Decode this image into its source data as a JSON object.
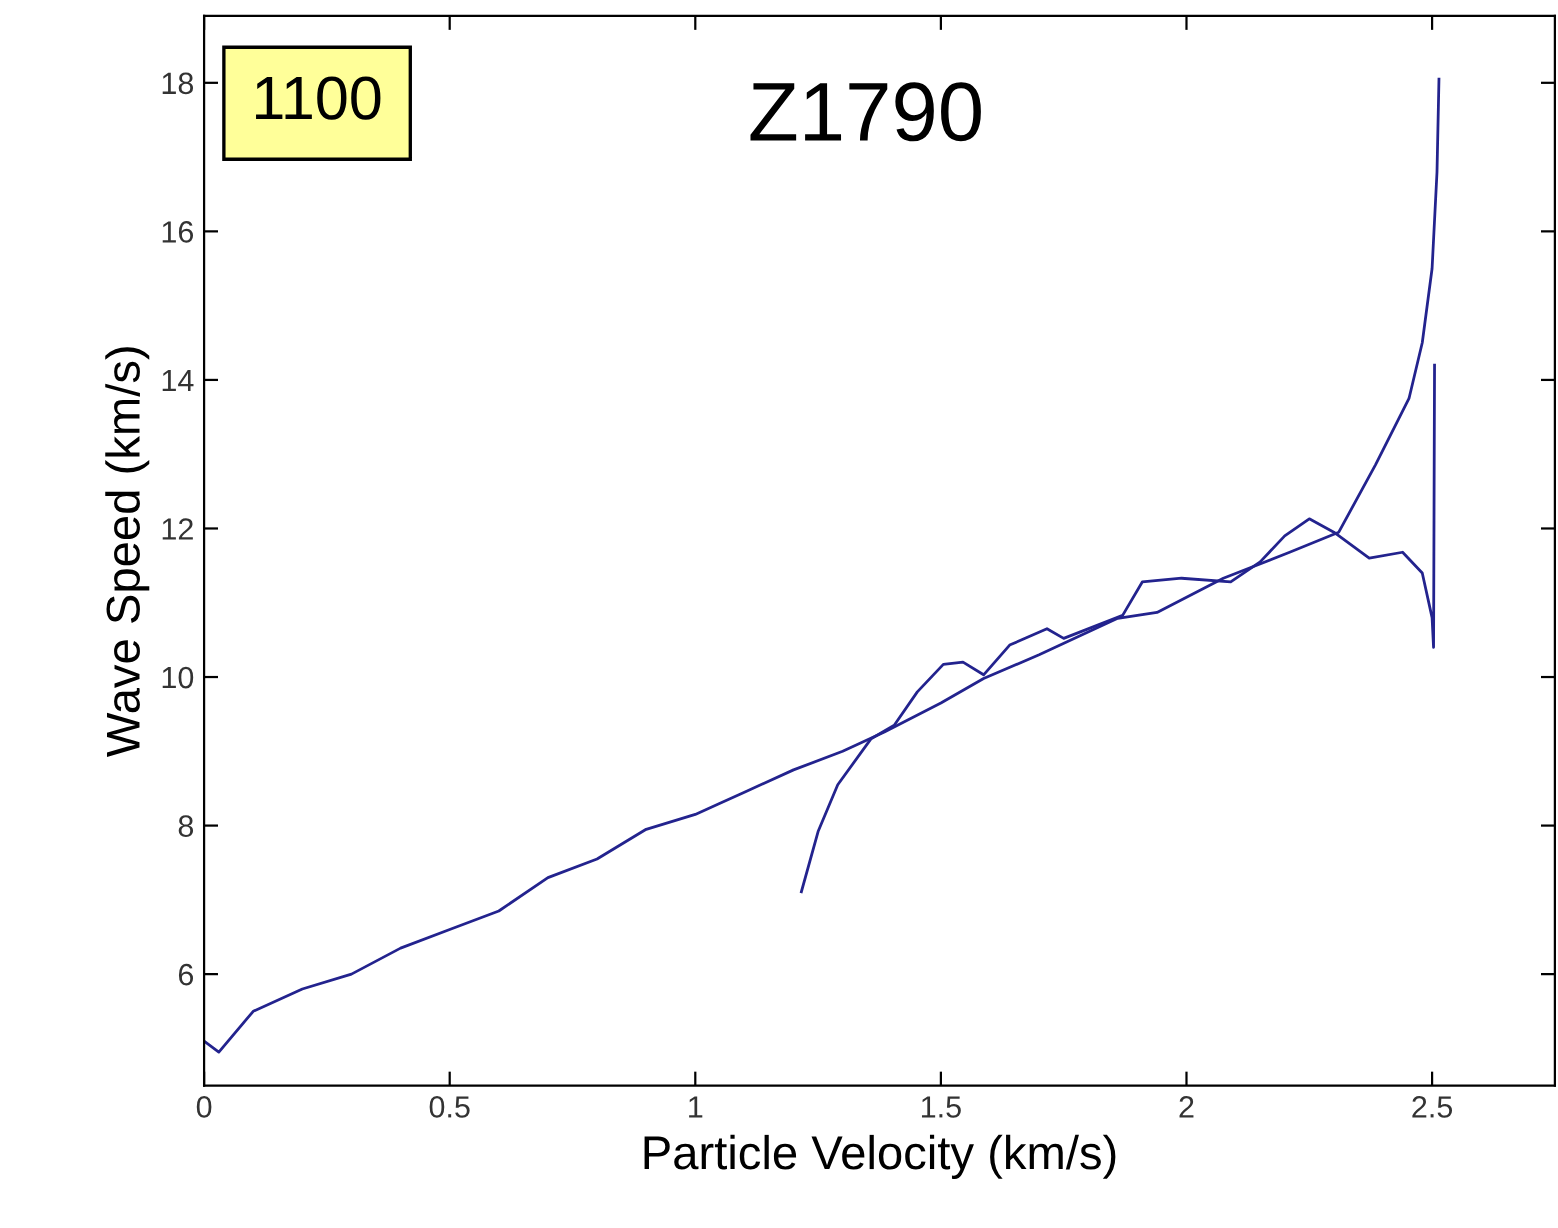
{
  "chart_data": {
    "type": "line",
    "xlabel": "Particle Velocity (km/s)",
    "ylabel": "Wave Speed (km/s)",
    "annotations": [
      "1100",
      "Z1790"
    ],
    "xlim": [
      0,
      2.75
    ],
    "ylim": [
      4.5,
      18.9
    ],
    "xticks": [
      0,
      0.5,
      1,
      1.5,
      2,
      2.5
    ],
    "yticks": [
      6,
      8,
      10,
      12,
      14,
      16,
      18
    ],
    "grid": false,
    "legend": false,
    "series": [
      {
        "color": "#23238e",
        "x": [
          0,
          0.03,
          0.1,
          0.2,
          0.3,
          0.4,
          0.5,
          0.6,
          0.7,
          0.8,
          0.9,
          1.0,
          1.047,
          1.1,
          1.2,
          1.3,
          1.385,
          1.5,
          1.587,
          1.7,
          1.86,
          1.94,
          2.075,
          2.21,
          2.31,
          2.385,
          2.453,
          2.48,
          2.5,
          2.51,
          2.514
        ],
        "values": [
          5.1,
          4.95,
          5.5,
          5.8,
          6.0,
          6.35,
          6.6,
          6.85,
          7.3,
          7.55,
          7.95,
          8.15,
          8.29,
          8.45,
          8.75,
          9.0,
          9.26,
          9.65,
          9.98,
          10.3,
          10.79,
          10.87,
          11.33,
          11.68,
          11.95,
          12.86,
          13.75,
          14.5,
          15.5,
          16.8,
          18.05
        ]
      },
      {
        "color": "#23238e",
        "x": [
          1.216,
          1.25,
          1.29,
          1.358,
          1.405,
          1.452,
          1.505,
          1.545,
          1.587,
          1.64,
          1.716,
          1.75,
          1.87,
          1.91,
          1.99,
          2.09,
          2.15,
          2.2,
          2.25,
          2.3,
          2.372,
          2.44,
          2.48,
          2.5,
          2.503,
          2.505
        ],
        "values": [
          7.11,
          7.92,
          8.55,
          9.17,
          9.35,
          9.8,
          10.17,
          10.2,
          10.03,
          10.43,
          10.65,
          10.52,
          10.83,
          11.28,
          11.33,
          11.28,
          11.55,
          11.9,
          12.13,
          11.95,
          11.6,
          11.68,
          11.4,
          10.8,
          10.4,
          14.2
        ]
      }
    ]
  }
}
